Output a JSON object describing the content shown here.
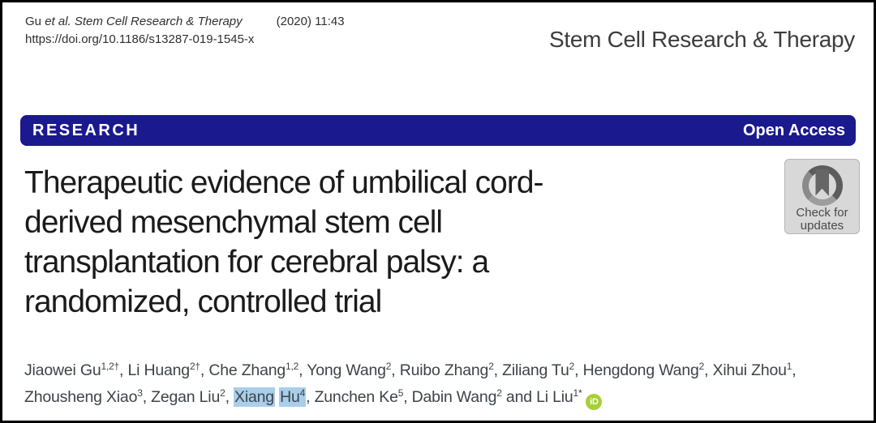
{
  "citation": {
    "authors_prefix": "Gu ",
    "source_italic": "et al. Stem Cell Research & Therapy",
    "issue": "(2020) 11:43",
    "doi": "https://doi.org/10.1186/s13287-019-1545-x"
  },
  "masthead": {
    "journal_name": "Stem Cell Research & Therapy"
  },
  "banner": {
    "left_label": "RESEARCH",
    "right_label": "Open Access",
    "bg_color": "#1b198e",
    "text_color": "#ffffff"
  },
  "article": {
    "title_lines": [
      "Therapeutic evidence of umbilical cord-",
      "derived mesenchymal stem cell",
      "transplantation for cerebral palsy: a",
      "randomized, controlled trial"
    ]
  },
  "update_badge": {
    "line1": "Check for",
    "line2": "updates",
    "bg_color": "#d8d8d8"
  },
  "authors": {
    "separator": ", ",
    "and_word": "and",
    "highlight_color": "#a9cee9",
    "orcid_color": "#a6ce39",
    "orcid_label": "iD",
    "list": [
      {
        "name": "Jiaowei Gu",
        "sup": "1,2†"
      },
      {
        "name": "Li Huang",
        "sup": "2†"
      },
      {
        "name": "Che Zhang",
        "sup": "1,2"
      },
      {
        "name": "Yong Wang",
        "sup": "2"
      },
      {
        "name": "Ruibo Zhang",
        "sup": "2"
      },
      {
        "name": "Ziliang Tu",
        "sup": "2"
      },
      {
        "name": "Hengdong Wang",
        "sup": "2"
      },
      {
        "name": "Xihui Zhou",
        "sup": "1"
      },
      {
        "name": "Zhousheng Xiao",
        "sup": "3"
      },
      {
        "name": "Zegan Liu",
        "sup": "2"
      },
      {
        "name": "Xiang Hu",
        "sup": "4",
        "highlighted": true
      },
      {
        "name": "Zunchen Ke",
        "sup": "5"
      },
      {
        "name": "Dabin Wang",
        "sup": "2"
      },
      {
        "name": "Li Liu",
        "sup": "1*",
        "orcid": true
      }
    ]
  }
}
